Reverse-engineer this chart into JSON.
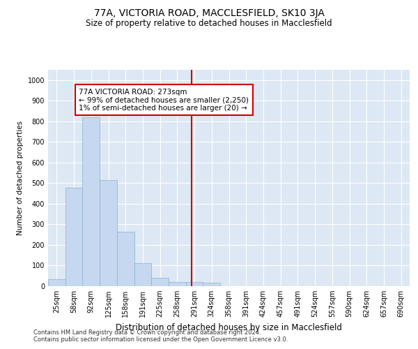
{
  "title": "77A, VICTORIA ROAD, MACCLESFIELD, SK10 3JA",
  "subtitle": "Size of property relative to detached houses in Macclesfield",
  "xlabel": "Distribution of detached houses by size in Macclesfield",
  "ylabel": "Number of detached properties",
  "footer_line1": "Contains HM Land Registry data © Crown copyright and database right 2024.",
  "footer_line2": "Contains public sector information licensed under the Open Government Licence v3.0.",
  "bar_labels": [
    "25sqm",
    "58sqm",
    "92sqm",
    "125sqm",
    "158sqm",
    "191sqm",
    "225sqm",
    "258sqm",
    "291sqm",
    "324sqm",
    "358sqm",
    "391sqm",
    "424sqm",
    "457sqm",
    "491sqm",
    "524sqm",
    "557sqm",
    "590sqm",
    "624sqm",
    "657sqm",
    "690sqm"
  ],
  "bar_values": [
    33,
    478,
    820,
    515,
    263,
    112,
    40,
    20,
    20,
    18,
    0,
    0,
    0,
    0,
    0,
    0,
    0,
    0,
    0,
    0,
    0
  ],
  "bar_color": "#c5d8f0",
  "bar_edge_color": "#8ab0d0",
  "background_color": "#dde8f4",
  "grid_color": "#ffffff",
  "vline_x_index": 7.85,
  "vline_color": "#cc0000",
  "annotation_text": "77A VICTORIA ROAD: 273sqm\n← 99% of detached houses are smaller (2,250)\n1% of semi-detached houses are larger (20) →",
  "annotation_box_edge": "#cc0000",
  "ylim": [
    0,
    1050
  ],
  "yticks": [
    0,
    100,
    200,
    300,
    400,
    500,
    600,
    700,
    800,
    900,
    1000
  ],
  "title_fontsize": 10,
  "subtitle_fontsize": 8.5,
  "xlabel_fontsize": 8.5,
  "ylabel_fontsize": 7.5,
  "tick_fontsize": 7,
  "annotation_fontsize": 7.5,
  "footer_fontsize": 6
}
